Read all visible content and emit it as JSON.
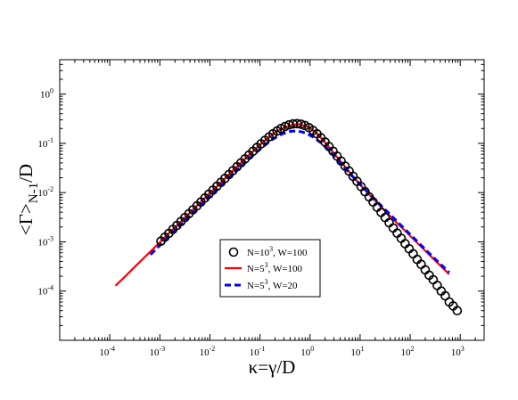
{
  "chart_data": {
    "type": "line",
    "title": "",
    "xlabel": "κ=γ/D",
    "ylabel": {
      "main": "<Γ>",
      "sub": "N-1",
      "tail": "/D"
    },
    "xscale": "log",
    "yscale": "log",
    "xlim": [
      1e-05,
      3000
    ],
    "ylim": [
      1e-05,
      5
    ],
    "x_ticks": [
      {
        "value": 0.0001,
        "base": "10",
        "exp": "-4"
      },
      {
        "value": 0.001,
        "base": "10",
        "exp": "-3"
      },
      {
        "value": 0.01,
        "base": "10",
        "exp": "-2"
      },
      {
        "value": 0.1,
        "base": "10",
        "exp": "-1"
      },
      {
        "value": 1,
        "base": "10",
        "exp": "0"
      },
      {
        "value": 10,
        "base": "10",
        "exp": "1"
      },
      {
        "value": 100,
        "base": "10",
        "exp": "2"
      },
      {
        "value": 1000,
        "base": "10",
        "exp": "3"
      }
    ],
    "y_ticks": [
      {
        "value": 0.0001,
        "base": "10",
        "exp": "-4"
      },
      {
        "value": 0.001,
        "base": "10",
        "exp": "-3"
      },
      {
        "value": 0.01,
        "base": "10",
        "exp": "-2"
      },
      {
        "value": 0.1,
        "base": "10",
        "exp": "-1"
      },
      {
        "value": 1,
        "base": "10",
        "exp": "0"
      }
    ],
    "grid": false,
    "legend_position": "lower-center",
    "series": [
      {
        "name_parts": [
          "N=10",
          "3",
          ", W=100"
        ],
        "style": "markers",
        "marker": "open-circle",
        "color": "#000000",
        "points": [
          [
            0.00105,
            0.00103
          ],
          [
            0.00126,
            0.00124
          ],
          [
            0.00151,
            0.00149
          ],
          [
            0.00182,
            0.00179
          ],
          [
            0.00219,
            0.00215
          ],
          [
            0.00263,
            0.00258
          ],
          [
            0.00316,
            0.0031
          ],
          [
            0.0038,
            0.00372
          ],
          [
            0.00457,
            0.00447
          ],
          [
            0.0055,
            0.00537
          ],
          [
            0.00661,
            0.00645
          ],
          [
            0.00794,
            0.00775
          ],
          [
            0.00955,
            0.0093
          ],
          [
            0.01148,
            0.01117
          ],
          [
            0.0138,
            0.01341
          ],
          [
            0.0166,
            0.01611
          ],
          [
            0.01995,
            0.01935
          ],
          [
            0.02399,
            0.02324
          ],
          [
            0.02884,
            0.02791
          ],
          [
            0.03467,
            0.0335
          ],
          [
            0.04169,
            0.0402
          ],
          [
            0.05012,
            0.04821
          ],
          [
            0.06026,
            0.05776
          ],
          [
            0.07244,
            0.06905
          ],
          [
            0.0871,
            0.08232
          ],
          [
            0.10471,
            0.0977
          ],
          [
            0.12589,
            0.1152
          ],
          [
            0.15136,
            0.1347
          ],
          [
            0.18197,
            0.1558
          ],
          [
            0.21878,
            0.1779
          ],
          [
            0.26303,
            0.1999
          ],
          [
            0.31623,
            0.2201
          ],
          [
            0.38019,
            0.237
          ],
          [
            0.45709,
            0.248
          ],
          [
            0.54954,
            0.251
          ],
          [
            0.66069,
            0.2449
          ],
          [
            0.79433,
            0.2301
          ],
          [
            0.95499,
            0.2085
          ],
          [
            1.14815,
            0.1827
          ],
          [
            1.38038,
            0.1557
          ],
          [
            1.65959,
            0.1297
          ],
          [
            1.99526,
            0.1063
          ],
          [
            2.39883,
            0.08602
          ],
          [
            2.88403,
            0.06897
          ],
          [
            3.46737,
            0.05497
          ],
          [
            4.16869,
            0.04361
          ],
          [
            5.01187,
            0.03449
          ],
          [
            6.0256,
            0.02722
          ],
          [
            7.24436,
            0.02145
          ],
          [
            8.70964,
            0.01688
          ],
          [
            10.4713,
            0.01327
          ],
          [
            12.5893,
            0.01043
          ],
          [
            15.1356,
            0.00819
          ],
          [
            18.197,
            0.00643
          ],
          [
            21.8776,
            0.00505
          ],
          [
            26.3027,
            0.00396
          ],
          [
            31.6228,
            0.00311
          ],
          [
            38.0189,
            0.00244
          ],
          [
            45.7088,
            0.00191
          ],
          [
            54.9541,
            0.0015
          ],
          [
            66.0693,
            0.00118
          ],
          [
            79.4328,
            0.00092
          ],
          [
            95.4993,
            0.00072
          ],
          [
            114.815,
            0.00057
          ],
          [
            138.038,
            0.00044
          ],
          [
            165.959,
            0.00035
          ],
          [
            199.526,
            0.00027
          ],
          [
            239.883,
            0.00021
          ],
          [
            288.403,
            0.00017
          ],
          [
            346.737,
            0.00013
          ],
          [
            416.869,
            0.0001
          ],
          [
            501.187,
            8e-05
          ],
          [
            602.56,
            6e-05
          ],
          [
            724.436,
            5e-05
          ],
          [
            870.964,
            4e-05
          ]
        ]
      },
      {
        "name_parts": [
          "N=5",
          "3",
          ", W=100"
        ],
        "style": "solid",
        "color": "#ff0000",
        "points": [
          [
            0.00013,
            0.000128
          ],
          [
            0.0002,
            0.000196
          ],
          [
            0.0003,
            0.000295
          ],
          [
            0.0005,
            0.000491
          ],
          [
            0.0008,
            0.000785
          ],
          [
            0.0012,
            0.00118
          ],
          [
            0.002,
            0.00196
          ],
          [
            0.003,
            0.00294
          ],
          [
            0.005,
            0.00489
          ],
          [
            0.008,
            0.0078
          ],
          [
            0.012,
            0.01168
          ],
          [
            0.02,
            0.0194
          ],
          [
            0.03,
            0.02897
          ],
          [
            0.05,
            0.04783
          ],
          [
            0.08,
            0.07521
          ],
          [
            0.12,
            0.1102
          ],
          [
            0.2,
            0.1653
          ],
          [
            0.3,
            0.2076
          ],
          [
            0.45,
            0.24
          ],
          [
            0.6,
            0.245
          ],
          [
            0.8,
            0.2285
          ],
          [
            1.0,
            0.203
          ],
          [
            1.3,
            0.166
          ],
          [
            1.7,
            0.1265
          ],
          [
            2.2,
            0.093
          ],
          [
            3.0,
            0.0625
          ],
          [
            4.0,
            0.044
          ],
          [
            6.0,
            0.0269
          ],
          [
            10.0,
            0.0144
          ],
          [
            20.0,
            0.0068
          ],
          [
            40.0,
            0.0033
          ],
          [
            80.0,
            0.00165
          ],
          [
            150.0,
            0.00088
          ],
          [
            300.0,
            0.00044
          ],
          [
            600.0,
            0.00022
          ]
        ]
      },
      {
        "name_parts": [
          "N=5",
          "3",
          ", W=20"
        ],
        "style": "dashed",
        "color": "#0000ff",
        "points": [
          [
            0.00065,
            0.00055
          ],
          [
            0.001,
            0.00085
          ],
          [
            0.0015,
            0.00127
          ],
          [
            0.0025,
            0.00211
          ],
          [
            0.004,
            0.00337
          ],
          [
            0.007,
            0.00588
          ],
          [
            0.012,
            0.01002
          ],
          [
            0.02,
            0.01658
          ],
          [
            0.035,
            0.02862
          ],
          [
            0.06,
            0.0478
          ],
          [
            0.1,
            0.076
          ],
          [
            0.17,
            0.117
          ],
          [
            0.28,
            0.156
          ],
          [
            0.42,
            0.176
          ],
          [
            0.55,
            0.178
          ],
          [
            0.7,
            0.17
          ],
          [
            0.9,
            0.155
          ],
          [
            1.2,
            0.131
          ],
          [
            1.6,
            0.105
          ],
          [
            2.2,
            0.078
          ],
          [
            3.0,
            0.056
          ],
          [
            4.5,
            0.035
          ],
          [
            7.0,
            0.0215
          ],
          [
            12.0,
            0.0122
          ],
          [
            20.0,
            0.0072
          ],
          [
            40.0,
            0.00355
          ],
          [
            80.0,
            0.00177
          ],
          [
            150.0,
            0.00094
          ],
          [
            300.0,
            0.00047
          ],
          [
            600.0,
            0.00024
          ]
        ]
      }
    ]
  }
}
